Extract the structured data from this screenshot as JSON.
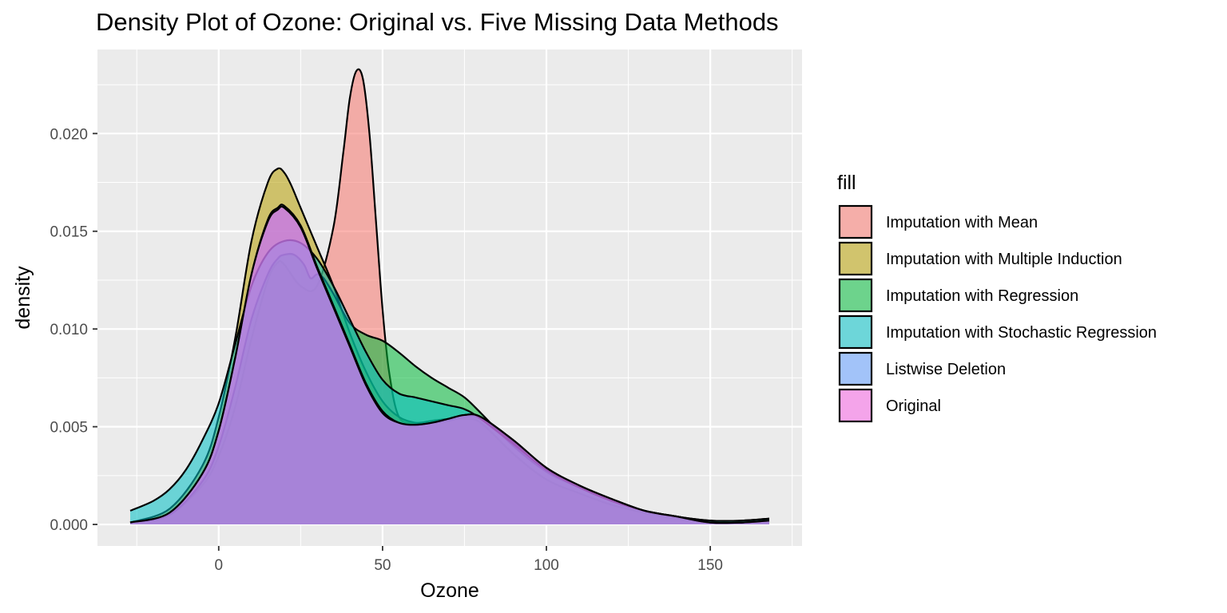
{
  "chart_data": {
    "type": "area",
    "title": "Density Plot of Ozone: Original vs. Five Missing Data Methods",
    "xlabel": "Ozone",
    "ylabel": "density",
    "xlim": [
      -37,
      178
    ],
    "ylim": [
      -0.0011,
      0.0243
    ],
    "x_ticks": [
      0,
      50,
      100,
      150
    ],
    "x_tick_labels": [
      "0",
      "50",
      "100",
      "150"
    ],
    "y_ticks": [
      0.0,
      0.005,
      0.01,
      0.015,
      0.02
    ],
    "y_tick_labels": [
      "0.000",
      "0.005",
      "0.010",
      "0.015",
      "0.020"
    ],
    "grid": true,
    "legend_title": "fill",
    "legend_position": "right",
    "fill_opacity": 0.55,
    "series": [
      {
        "name": "Imputation with Mean",
        "color": "#F8766D",
        "x": [
          -27,
          -15,
          -5,
          0,
          5,
          10,
          15,
          18,
          20,
          25,
          30,
          35,
          38,
          40,
          42,
          44,
          46,
          48,
          50,
          52,
          55,
          60,
          65,
          70,
          75,
          80,
          90,
          100,
          110,
          120,
          130,
          140,
          150,
          160,
          168
        ],
        "y": [
          0.0001,
          0.0005,
          0.002,
          0.0035,
          0.006,
          0.0095,
          0.0125,
          0.0134,
          0.0133,
          0.0122,
          0.0122,
          0.0152,
          0.019,
          0.0218,
          0.0232,
          0.0228,
          0.02,
          0.0155,
          0.011,
          0.0078,
          0.0055,
          0.0052,
          0.0053,
          0.0054,
          0.0054,
          0.0052,
          0.0036,
          0.0023,
          0.0016,
          0.001,
          0.0006,
          0.0003,
          0.0001,
          0.0001,
          0.0002
        ]
      },
      {
        "name": "Imputation with Multiple Induction",
        "color": "#B79F00",
        "x": [
          -27,
          -15,
          -5,
          0,
          5,
          10,
          15,
          18,
          20,
          22,
          25,
          30,
          35,
          40,
          45,
          50,
          55,
          60,
          65,
          70,
          75,
          80,
          90,
          100,
          110,
          120,
          130,
          140,
          150,
          160,
          168
        ],
        "y": [
          0.0001,
          0.0008,
          0.003,
          0.0055,
          0.0095,
          0.0145,
          0.0175,
          0.0182,
          0.018,
          0.0174,
          0.0162,
          0.0142,
          0.0122,
          0.0098,
          0.0078,
          0.0063,
          0.0055,
          0.0052,
          0.0052,
          0.0053,
          0.0055,
          0.0054,
          0.0042,
          0.0027,
          0.0019,
          0.0012,
          0.0007,
          0.0004,
          0.0002,
          0.0002,
          0.0003
        ]
      },
      {
        "name": "Imputation with Regression",
        "color": "#00BA38",
        "x": [
          -27,
          -15,
          -5,
          0,
          5,
          10,
          15,
          18,
          20,
          23,
          26,
          28,
          30,
          32,
          35,
          40,
          45,
          50,
          55,
          60,
          65,
          70,
          75,
          80,
          90,
          100,
          110,
          120,
          130,
          140,
          150,
          160,
          168
        ],
        "y": [
          0.0001,
          0.0005,
          0.0022,
          0.004,
          0.007,
          0.0105,
          0.0128,
          0.0136,
          0.0138,
          0.0138,
          0.0133,
          0.0126,
          0.0128,
          0.0126,
          0.0118,
          0.0103,
          0.0097,
          0.0094,
          0.0088,
          0.0081,
          0.0075,
          0.007,
          0.0065,
          0.0057,
          0.004,
          0.0027,
          0.0019,
          0.0012,
          0.0007,
          0.0004,
          0.0001,
          0.0001,
          0.0002
        ]
      },
      {
        "name": "Imputation with Stochastic Regression",
        "color": "#00BFC4",
        "x": [
          -27,
          -20,
          -15,
          -10,
          -5,
          0,
          5,
          10,
          15,
          20,
          25,
          30,
          35,
          40,
          45,
          50,
          55,
          60,
          65,
          70,
          75,
          80,
          90,
          100,
          110,
          120,
          130,
          140,
          150,
          160,
          168
        ],
        "y": [
          0.0007,
          0.0012,
          0.0018,
          0.0028,
          0.0043,
          0.0062,
          0.0092,
          0.0122,
          0.0139,
          0.0145,
          0.0144,
          0.0136,
          0.0122,
          0.0105,
          0.0088,
          0.0074,
          0.0067,
          0.0065,
          0.0063,
          0.0061,
          0.0059,
          0.0054,
          0.0041,
          0.0028,
          0.0019,
          0.0012,
          0.0007,
          0.0004,
          0.0002,
          0.0002,
          0.0003
        ]
      },
      {
        "name": "Listwise Deletion",
        "color": "#619CFF",
        "x": [
          -27,
          -15,
          -5,
          0,
          5,
          10,
          15,
          18,
          20,
          25,
          30,
          35,
          40,
          45,
          50,
          55,
          60,
          65,
          70,
          75,
          80,
          90,
          100,
          110,
          120,
          130,
          140,
          150,
          160,
          168
        ],
        "y": [
          0.0001,
          0.0006,
          0.0026,
          0.0048,
          0.0085,
          0.0128,
          0.0156,
          0.0162,
          0.0163,
          0.0153,
          0.0132,
          0.0112,
          0.0092,
          0.0072,
          0.0058,
          0.0052,
          0.0051,
          0.0052,
          0.0054,
          0.0056,
          0.0055,
          0.0043,
          0.0029,
          0.002,
          0.0013,
          0.0007,
          0.0004,
          0.0001,
          0.0001,
          0.0002
        ]
      },
      {
        "name": "Original",
        "color": "#F564E3",
        "x": [
          -27,
          -15,
          -5,
          0,
          5,
          10,
          15,
          18,
          20,
          25,
          30,
          35,
          40,
          45,
          50,
          55,
          60,
          65,
          70,
          75,
          80,
          90,
          100,
          110,
          120,
          130,
          140,
          150,
          160,
          168
        ],
        "y": [
          0.0001,
          0.0006,
          0.0026,
          0.0048,
          0.0085,
          0.0128,
          0.0155,
          0.0161,
          0.0162,
          0.0152,
          0.0131,
          0.0111,
          0.0091,
          0.0071,
          0.0057,
          0.0052,
          0.0051,
          0.0052,
          0.0054,
          0.0056,
          0.0055,
          0.0043,
          0.0029,
          0.002,
          0.0013,
          0.0007,
          0.0004,
          0.0001,
          0.0001,
          0.0002
        ]
      }
    ]
  }
}
